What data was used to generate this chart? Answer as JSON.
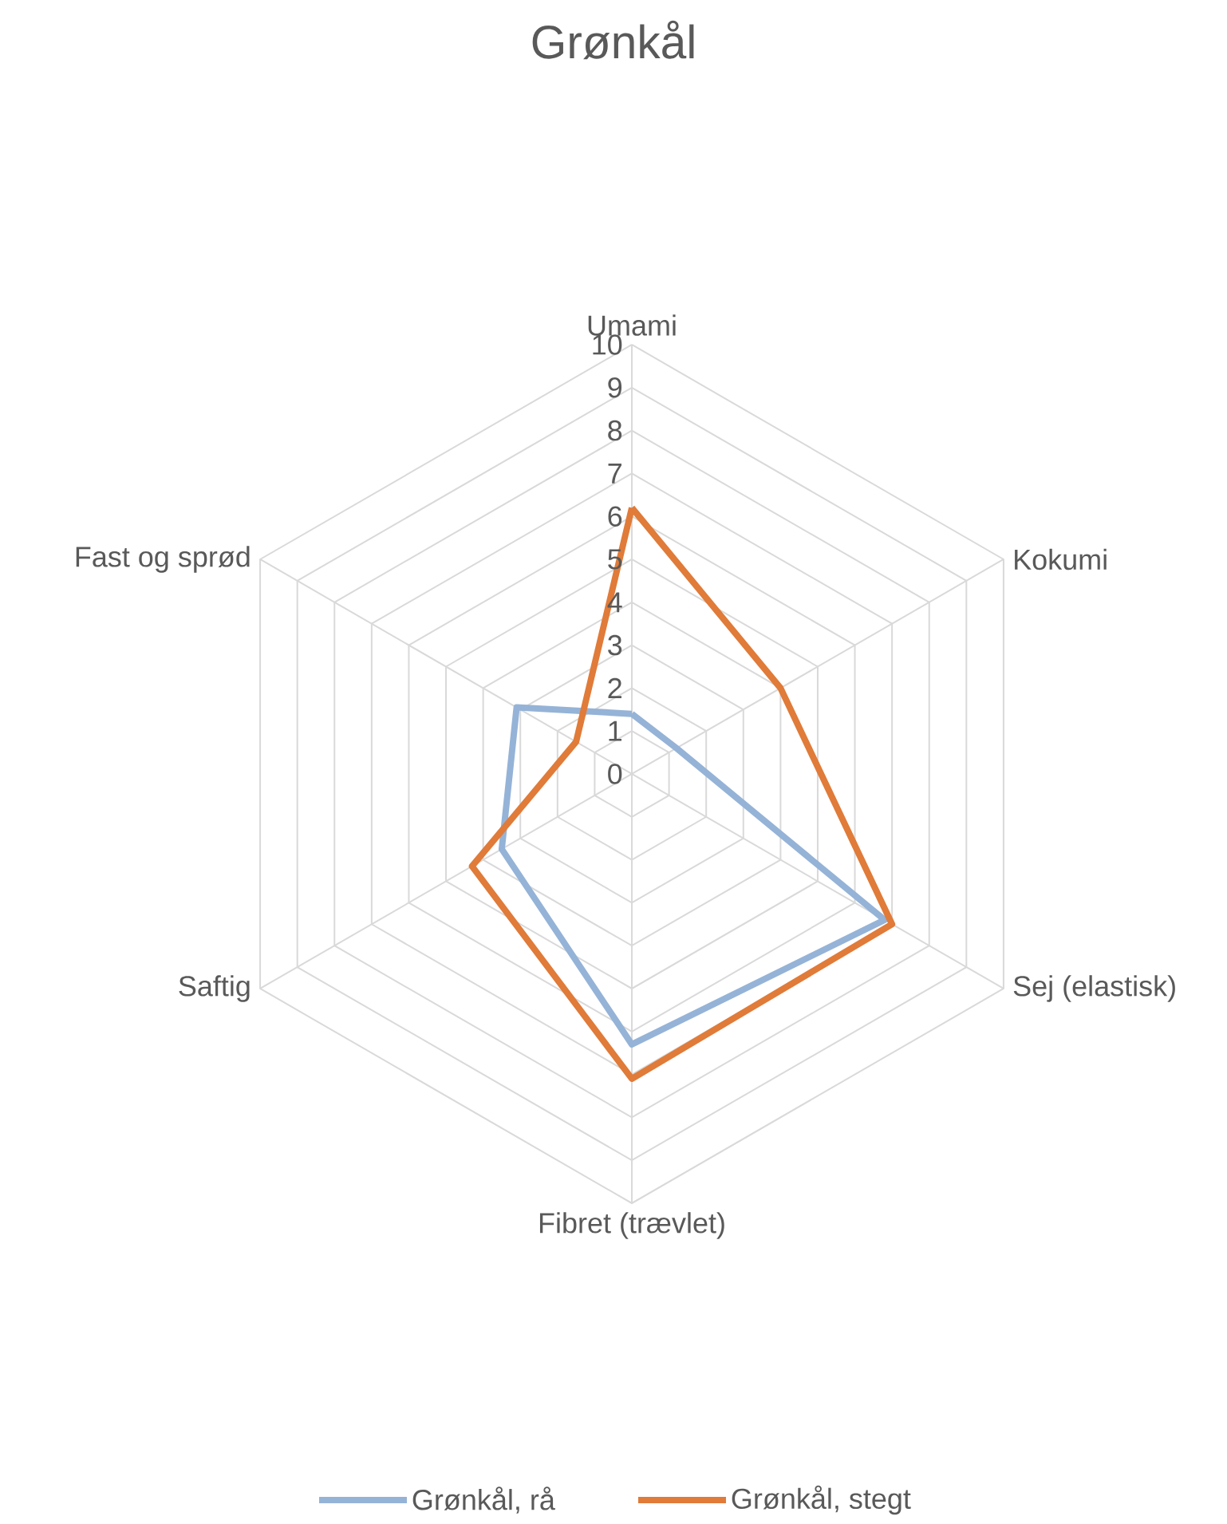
{
  "chart_data": {
    "type": "radar",
    "title": "Grønkål",
    "categories": [
      "Umami",
      "Kokumi",
      "Sej (elastisk)",
      "Fibret (trævlet)",
      "Saftig",
      "Fast og sprød"
    ],
    "series": [
      {
        "name": "Grønkål, rå",
        "color": "#95b3d7",
        "values": [
          1.4,
          1.2,
          6.8,
          6.3,
          3.5,
          3.1
        ]
      },
      {
        "name": "Grønkål, stegt",
        "color": "#e07b39",
        "values": [
          6.2,
          4.0,
          7.0,
          7.1,
          4.3,
          1.5
        ]
      }
    ],
    "ylim": [
      0,
      10
    ],
    "yticks": [
      0,
      1,
      2,
      3,
      4,
      5,
      6,
      7,
      8,
      9,
      10
    ],
    "grid": true,
    "legend": "bottom"
  }
}
